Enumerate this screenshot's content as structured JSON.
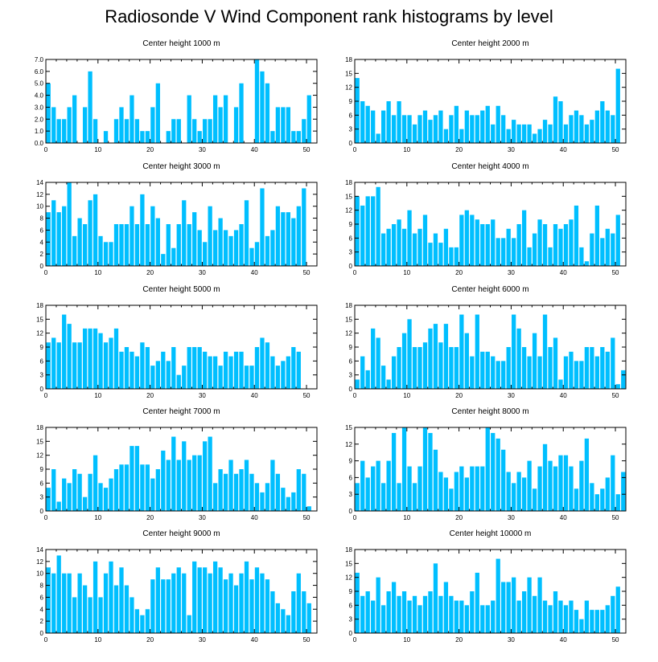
{
  "figure": {
    "title": "Radiosonde V Wind Component rank histograms by level"
  },
  "chart_data": [
    {
      "type": "bar",
      "title": "Center height 1000 m",
      "xlim": [
        0,
        52
      ],
      "ylim": [
        0,
        7
      ],
      "xticks": [
        0,
        10,
        20,
        30,
        40,
        50
      ],
      "yticks": [
        "0.0",
        "1.0",
        "2.0",
        "3.0",
        "4.0",
        "5.0",
        "6.0",
        "7.0"
      ],
      "values": [
        5,
        3,
        2,
        2,
        3,
        4,
        0,
        3,
        6,
        2,
        0,
        1,
        0,
        2,
        3,
        2,
        4,
        2,
        1,
        1,
        3,
        5,
        0,
        1,
        2,
        2,
        0,
        4,
        2,
        1,
        2,
        2,
        4,
        3,
        4,
        0,
        3,
        5,
        0,
        0,
        7,
        6,
        5,
        1,
        3,
        3,
        3,
        1,
        1,
        2,
        4
      ]
    },
    {
      "type": "bar",
      "title": "Center height 2000 m",
      "xlim": [
        0,
        52
      ],
      "ylim": [
        0,
        18
      ],
      "xticks": [
        0,
        10,
        20,
        30,
        40,
        50
      ],
      "yticks": [
        "0",
        "3",
        "6",
        "9",
        "12",
        "15",
        "18"
      ],
      "values": [
        14,
        9,
        8,
        7,
        2,
        7,
        9,
        6,
        9,
        6,
        6,
        4,
        6,
        7,
        5,
        6,
        7,
        3,
        6,
        8,
        3,
        7,
        6,
        6,
        7,
        8,
        4,
        8,
        6,
        3,
        5,
        4,
        4,
        4,
        2,
        3,
        5,
        4,
        10,
        9,
        4,
        6,
        7,
        6,
        4,
        5,
        7,
        9,
        7,
        6,
        16
      ]
    },
    {
      "type": "bar",
      "title": "Center height 3000 m",
      "xlim": [
        0,
        52
      ],
      "ylim": [
        0,
        14
      ],
      "xticks": [
        0,
        10,
        20,
        30,
        40,
        50
      ],
      "yticks": [
        "0",
        "2",
        "4",
        "6",
        "8",
        "10",
        "12",
        "14"
      ],
      "values": [
        9,
        11,
        9,
        10,
        14,
        5,
        8,
        7,
        11,
        12,
        5,
        4,
        4,
        7,
        7,
        7,
        10,
        7,
        12,
        7,
        10,
        8,
        2,
        7,
        3,
        7,
        11,
        7,
        9,
        6,
        4,
        10,
        6,
        8,
        6,
        5,
        6,
        7,
        11,
        3,
        4,
        13,
        5,
        6,
        10,
        9,
        9,
        8,
        10,
        13,
        0
      ]
    },
    {
      "type": "bar",
      "title": "Center height 4000 m",
      "xlim": [
        0,
        52
      ],
      "ylim": [
        0,
        18
      ],
      "xticks": [
        0,
        10,
        20,
        30,
        40,
        50
      ],
      "yticks": [
        "0",
        "3",
        "6",
        "9",
        "12",
        "15",
        "18"
      ],
      "values": [
        15,
        13,
        15,
        15,
        17,
        7,
        8,
        9,
        10,
        8,
        12,
        7,
        8,
        11,
        5,
        7,
        5,
        8,
        4,
        4,
        11,
        12,
        11,
        10,
        9,
        9,
        10,
        6,
        6,
        8,
        6,
        9,
        12,
        4,
        7,
        10,
        9,
        4,
        9,
        8,
        9,
        10,
        13,
        4,
        1,
        7,
        13,
        6,
        8,
        7,
        11
      ]
    },
    {
      "type": "bar",
      "title": "Center height 5000 m",
      "xlim": [
        0,
        52
      ],
      "ylim": [
        0,
        18
      ],
      "xticks": [
        0,
        10,
        20,
        30,
        40,
        50
      ],
      "yticks": [
        "0",
        "3",
        "6",
        "9",
        "12",
        "15",
        "18"
      ],
      "values": [
        10,
        11,
        10,
        16,
        14,
        10,
        10,
        13,
        13,
        13,
        12,
        10,
        11,
        13,
        8,
        9,
        8,
        7,
        10,
        9,
        5,
        6,
        8,
        6,
        9,
        3,
        5,
        9,
        9,
        9,
        8,
        7,
        7,
        5,
        8,
        7,
        8,
        8,
        5,
        5,
        9,
        11,
        10,
        7,
        5,
        6,
        7,
        9,
        8,
        0,
        0
      ]
    },
    {
      "type": "bar",
      "title": "Center height 6000 m",
      "xlim": [
        0,
        52
      ],
      "ylim": [
        0,
        18
      ],
      "xticks": [
        0,
        10,
        20,
        30,
        40,
        50
      ],
      "yticks": [
        "0",
        "3",
        "6",
        "9",
        "12",
        "15",
        "18"
      ],
      "values": [
        2,
        7,
        4,
        13,
        11,
        5,
        2,
        7,
        9,
        12,
        15,
        9,
        9,
        10,
        13,
        14,
        10,
        14,
        9,
        9,
        16,
        12,
        7,
        16,
        8,
        8,
        7,
        6,
        6,
        9,
        16,
        13,
        9,
        7,
        12,
        7,
        16,
        9,
        11,
        2,
        7,
        8,
        6,
        6,
        9,
        9,
        7,
        9,
        8,
        11,
        1,
        4
      ]
    },
    {
      "type": "bar",
      "title": "Center height 7000 m",
      "xlim": [
        0,
        52
      ],
      "ylim": [
        0,
        18
      ],
      "xticks": [
        0,
        10,
        20,
        30,
        40,
        50
      ],
      "yticks": [
        "0",
        "3",
        "6",
        "9",
        "12",
        "15",
        "18"
      ],
      "values": [
        5,
        9,
        2,
        7,
        6,
        9,
        8,
        3,
        8,
        12,
        6,
        5,
        7,
        9,
        10,
        10,
        14,
        14,
        10,
        10,
        7,
        9,
        13,
        11,
        16,
        11,
        15,
        11,
        12,
        12,
        15,
        16,
        6,
        9,
        8,
        11,
        8,
        9,
        11,
        8,
        6,
        4,
        6,
        11,
        8,
        5,
        3,
        4,
        9,
        8,
        1
      ]
    },
    {
      "type": "bar",
      "title": "Center height 8000 m",
      "xlim": [
        0,
        52
      ],
      "ylim": [
        0,
        15
      ],
      "xticks": [
        0,
        10,
        20,
        30,
        40,
        50
      ],
      "yticks": [
        "0",
        "3",
        "6",
        "9",
        "12",
        "15"
      ],
      "values": [
        5,
        9,
        6,
        8,
        9,
        5,
        9,
        14,
        5,
        15,
        8,
        5,
        8,
        15,
        14,
        11,
        7,
        6,
        4,
        7,
        8,
        6,
        8,
        8,
        8,
        15,
        14,
        13,
        11,
        7,
        5,
        7,
        6,
        9,
        4,
        8,
        12,
        9,
        8,
        10,
        10,
        8,
        4,
        9,
        13,
        5,
        3,
        4,
        6,
        10,
        3,
        7
      ]
    },
    {
      "type": "bar",
      "title": "Center height 9000 m",
      "xlim": [
        0,
        52
      ],
      "ylim": [
        0,
        14
      ],
      "xticks": [
        0,
        10,
        20,
        30,
        40,
        50
      ],
      "yticks": [
        "0",
        "2",
        "4",
        "6",
        "8",
        "10",
        "12",
        "14"
      ],
      "values": [
        11,
        10,
        13,
        10,
        10,
        6,
        10,
        8,
        6,
        12,
        6,
        10,
        12,
        8,
        11,
        8,
        6,
        4,
        3,
        4,
        9,
        11,
        9,
        9,
        10,
        11,
        10,
        3,
        12,
        11,
        11,
        10,
        12,
        11,
        9,
        10,
        8,
        10,
        12,
        9,
        11,
        10,
        9,
        7,
        5,
        4,
        3,
        7,
        10,
        7,
        5
      ]
    },
    {
      "type": "bar",
      "title": "Center height 10000 m",
      "xlim": [
        0,
        52
      ],
      "ylim": [
        0,
        18
      ],
      "xticks": [
        0,
        10,
        20,
        30,
        40,
        50
      ],
      "yticks": [
        "0",
        "3",
        "6",
        "9",
        "12",
        "15",
        "18"
      ],
      "values": [
        13,
        8,
        9,
        7,
        12,
        6,
        9,
        11,
        8,
        9,
        7,
        8,
        6,
        8,
        9,
        15,
        8,
        11,
        8,
        7,
        7,
        6,
        9,
        13,
        6,
        6,
        7,
        16,
        11,
        11,
        12,
        7,
        9,
        12,
        8,
        12,
        7,
        6,
        9,
        7,
        6,
        7,
        5,
        3,
        7,
        5,
        5,
        5,
        6,
        8,
        10
      ]
    }
  ]
}
